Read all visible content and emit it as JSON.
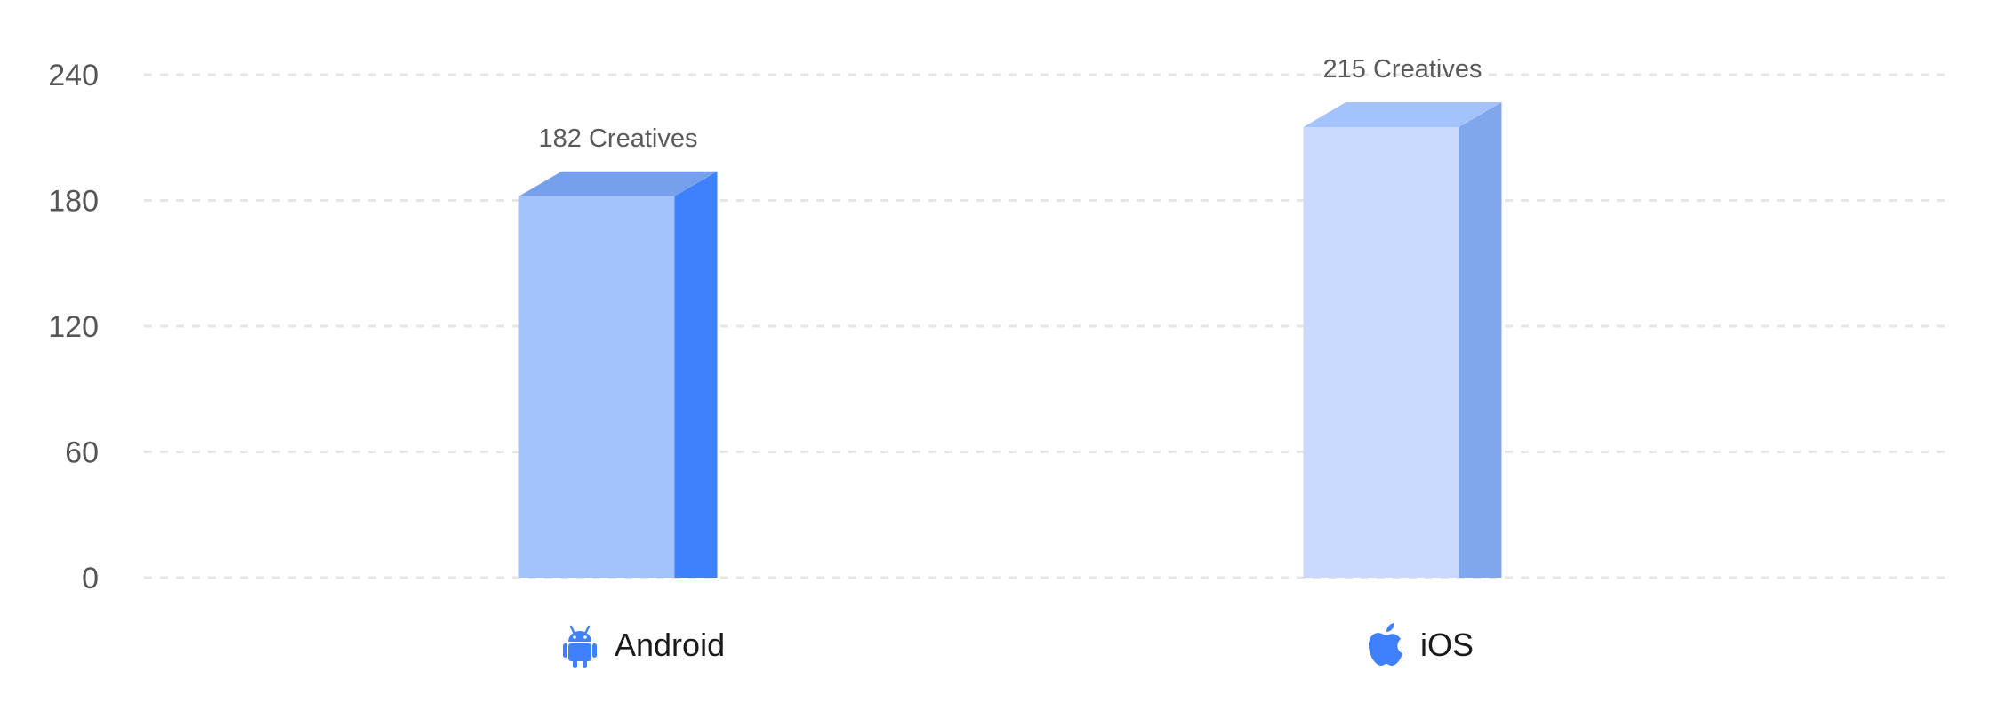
{
  "chart_data": {
    "type": "bar",
    "categories": [
      "Android",
      "iOS"
    ],
    "values": [
      182,
      215
    ],
    "data_labels": [
      "182 Creatives",
      "215 Creatives"
    ],
    "yticks": [
      0,
      60,
      120,
      180,
      240
    ],
    "ylim": [
      0,
      240
    ],
    "grid": true,
    "bar_style": "3d",
    "category_icons": [
      "android-icon",
      "apple-icon"
    ],
    "colors": {
      "android_front": "#A4C2FC",
      "android_side": "#3F80FC",
      "android_top": "#76A0EC",
      "ios_front": "#C9DAFE",
      "ios_side": "#80A7EC",
      "ios_top": "#A4C2FC",
      "icon": "#3F80FC",
      "grid": "#E6E6E6",
      "tick_text": "#555555",
      "label_text": "#5A5A5A",
      "category_text": "#1A1A1A"
    }
  }
}
